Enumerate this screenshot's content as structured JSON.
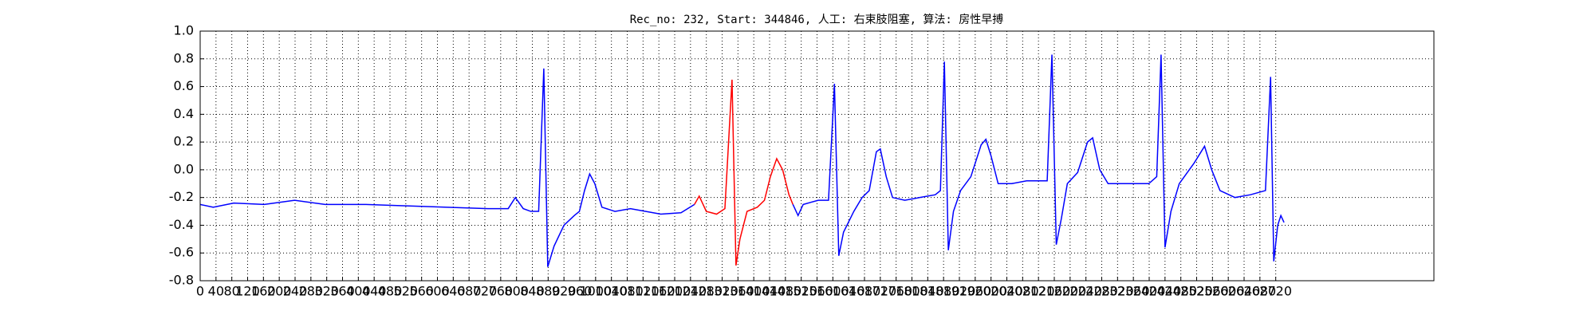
{
  "chart_data": {
    "type": "line",
    "title": "Rec_no: 232, Start: 344846, 人工: 右束肢阻塞, 算法: 房性早搏",
    "xlim": [
      0,
      3120
    ],
    "xticks": [
      0,
      40,
      80,
      120,
      160,
      200,
      240,
      280,
      320,
      360,
      400,
      440,
      480,
      520,
      560,
      600,
      640,
      680,
      720,
      760,
      800,
      840,
      880,
      920,
      960,
      1000,
      1040,
      1080,
      1120,
      1160,
      1200,
      1240,
      1280,
      1320,
      1360,
      1400,
      1440,
      1480,
      1520,
      1560,
      1600,
      1640,
      1680,
      1720,
      1760,
      1800,
      1840,
      1880,
      1920,
      1960,
      2000,
      2040,
      2080,
      2120,
      2160,
      2200,
      2240,
      2280,
      2320,
      2360,
      2400,
      2440,
      2480,
      2520,
      2560,
      2600,
      2640,
      2680,
      2720
    ],
    "ylim": [
      -0.8,
      1.0
    ],
    "yticks": [
      -0.8,
      -0.6,
      -0.4,
      -0.2,
      {
        "value": 0.0,
        "label": "0.0"
      },
      0.2,
      0.4,
      0.6,
      0.8,
      {
        "value": 1.0,
        "label": "1.0"
      }
    ],
    "grid": true,
    "series": [
      {
        "color": "#0000ff",
        "x": [
          0,
          33,
          85,
          162,
          239,
          316,
          419,
          522,
          625,
          728,
          779,
          797,
          817,
          836,
          856,
          869,
          879,
          895,
          920,
          946,
          959,
          972,
          985,
          998,
          1016,
          1049,
          1088,
          1165,
          1216,
          1250
        ],
        "values": [
          -0.25,
          -0.27,
          -0.24,
          -0.25,
          -0.22,
          -0.25,
          -0.25,
          -0.26,
          -0.27,
          -0.28,
          -0.28,
          -0.2,
          -0.28,
          -0.3,
          -0.3,
          0.73,
          -0.7,
          -0.55,
          -0.4,
          -0.33,
          -0.3,
          -0.15,
          -0.03,
          -0.1,
          -0.27,
          -0.3,
          -0.28,
          -0.32,
          -0.31,
          -0.25
        ]
      },
      {
        "color": "#ff0000",
        "x": [
          1250,
          1262,
          1280,
          1306,
          1327,
          1345,
          1355,
          1365,
          1383,
          1409,
          1427,
          1442,
          1458,
          1473,
          1489,
          1499
        ],
        "values": [
          -0.25,
          -0.19,
          -0.3,
          -0.32,
          -0.28,
          0.65,
          -0.69,
          -0.5,
          -0.3,
          -0.27,
          -0.22,
          -0.05,
          0.08,
          0.0,
          -0.18,
          -0.25
        ]
      },
      {
        "color": "#0000ff",
        "x": [
          1499,
          1512,
          1525,
          1563,
          1589,
          1604,
          1615,
          1627,
          1653,
          1674,
          1692,
          1710,
          1720,
          1735,
          1751,
          1782,
          1820,
          1859,
          1872,
          1882,
          1892,
          1905,
          1923,
          1949,
          1975,
          1987,
          2000,
          2018,
          2052,
          2090,
          2142,
          2154,
          2165,
          2178,
          2193,
          2219,
          2244,
          2257,
          2275,
          2296,
          2347,
          2399,
          2419,
          2430,
          2440,
          2455,
          2476,
          2514,
          2540,
          2558,
          2579,
          2617,
          2656,
          2694,
          2707,
          2715,
          2725,
          2733,
          2741
        ],
        "values": [
          -0.25,
          -0.33,
          -0.25,
          -0.22,
          -0.22,
          0.62,
          -0.62,
          -0.45,
          -0.3,
          -0.2,
          -0.15,
          0.13,
          0.15,
          -0.05,
          -0.2,
          -0.22,
          -0.2,
          -0.18,
          -0.15,
          0.78,
          -0.58,
          -0.3,
          -0.15,
          -0.05,
          0.18,
          0.22,
          0.1,
          -0.1,
          -0.1,
          -0.08,
          -0.08,
          0.83,
          -0.54,
          -0.35,
          -0.1,
          -0.02,
          0.2,
          0.23,
          0.0,
          -0.1,
          -0.1,
          -0.1,
          -0.05,
          0.83,
          -0.56,
          -0.3,
          -0.1,
          0.05,
          0.17,
          0.0,
          -0.15,
          -0.2,
          -0.18,
          -0.15,
          0.67,
          -0.66,
          -0.4,
          -0.33,
          -0.38
        ]
      }
    ]
  }
}
